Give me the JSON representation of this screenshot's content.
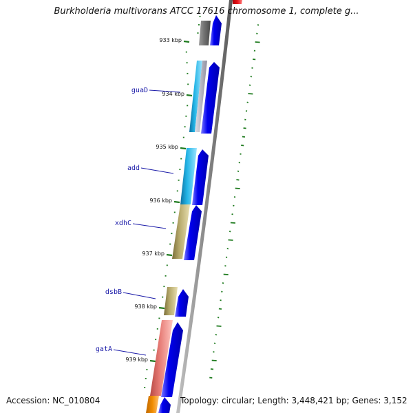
{
  "title": "Burkholderia multivorans ATCC 17616 chromosome 1, complete g...",
  "footer": {
    "accession": "Accession: NC_010804",
    "summary": "Topology: circular; Length: 3,448,421 bp; Genes: 3,152"
  },
  "kbp_ticks": [
    {
      "label": "933 kbp",
      "kbp": 933
    },
    {
      "label": "934 kbp",
      "kbp": 934
    },
    {
      "label": "935 kbp",
      "kbp": 935
    },
    {
      "label": "936 kbp",
      "kbp": 936
    },
    {
      "label": "937 kbp",
      "kbp": 937
    },
    {
      "label": "938 kbp",
      "kbp": 938
    },
    {
      "label": "939 kbp",
      "kbp": 939
    }
  ],
  "genes": [
    {
      "name": "guaD",
      "labeled": true
    },
    {
      "name": "add",
      "labeled": true
    },
    {
      "name": "xdhC",
      "labeled": true
    },
    {
      "name": "dsbB",
      "labeled": true
    },
    {
      "name": "gatA",
      "labeled": true
    }
  ],
  "colors": {
    "backbone": "#8a8a8a",
    "cds": "#0000ee",
    "gc_ticks": "#1d7a1d",
    "cog_gray": "#6e6e6e",
    "cog_cyan": "#22b4e6",
    "cog_khaki": "#b5a86a",
    "cog_salmon": "#e57872",
    "cog_orange": "#f08c00",
    "cog_red": "#e8141a",
    "gene_label": "#1a1aa8"
  }
}
